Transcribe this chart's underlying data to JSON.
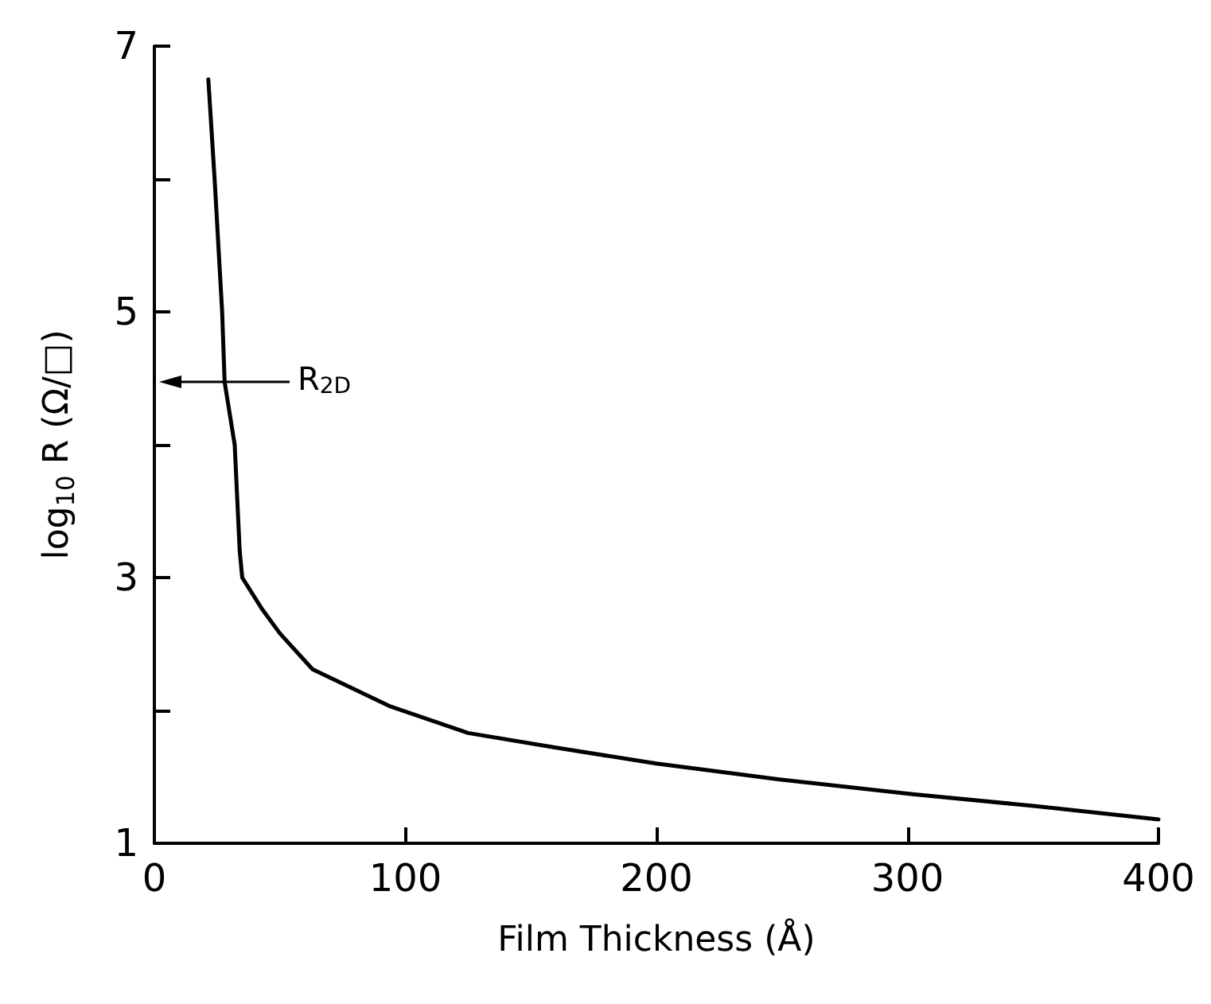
{
  "chart_data": {
    "type": "line",
    "xlabel": "Film Thickness (Å)",
    "ylabel": "log$_{10}$ R (Ω/□)",
    "x": [
      21.5,
      24,
      27,
      28,
      32,
      34,
      35,
      43,
      50,
      63,
      94,
      125,
      160,
      200,
      249,
      302,
      351,
      400
    ],
    "series": [
      {
        "color": "#000000",
        "values": [
          6.75,
          6,
          5,
          4.47,
          4,
          3.2,
          3,
          2.76,
          2.58,
          2.31,
          2.03,
          1.83,
          1.72,
          1.6,
          1.48,
          1.37,
          1.28,
          1.18
        ]
      }
    ],
    "xlim": [
      0,
      400
    ],
    "xticks": [
      0,
      100,
      200,
      300,
      400
    ],
    "ylim": [
      1,
      7
    ],
    "yticks": [
      1,
      {
        "value": 2,
        "label": null
      },
      3,
      {
        "value": 4,
        "label": null
      },
      5,
      {
        "value": 6,
        "label": null
      },
      7
    ],
    "annotations": [
      "R$_{2D}$"
    ],
    "grid": false,
    "marker": "none",
    "line_style": "solid"
  }
}
